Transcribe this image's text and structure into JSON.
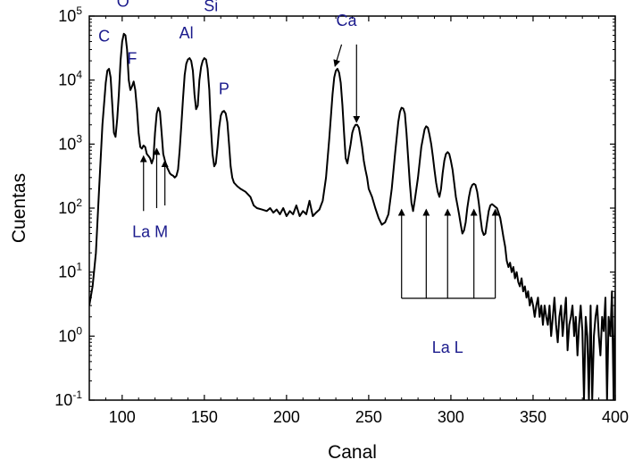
{
  "chart_data": {
    "type": "line",
    "xlabel": "Canal",
    "ylabel": "Cuentas",
    "xlim": [
      80,
      400
    ],
    "ylim": [
      0.1,
      100000
    ],
    "yscale": "log",
    "x_ticks": [
      100,
      150,
      200,
      250,
      300,
      350,
      400
    ],
    "x_tick_labels": [
      "100",
      "150",
      "200",
      "250",
      "300",
      "350",
      "400"
    ],
    "y_ticks": [
      {
        "value": 0.1,
        "base": "10",
        "exp": "-1"
      },
      {
        "value": 1,
        "base": "10",
        "exp": "0"
      },
      {
        "value": 10,
        "base": "10",
        "exp": "1"
      },
      {
        "value": 100,
        "base": "10",
        "exp": "2"
      },
      {
        "value": 1000,
        "base": "10",
        "exp": "3"
      },
      {
        "value": 10000,
        "base": "10",
        "exp": "4"
      },
      {
        "value": 100000,
        "base": "10",
        "exp": "5"
      }
    ],
    "grid": false,
    "line_color": "#000000",
    "annotation_color": "#1a1a8c",
    "series": [
      {
        "points": [
          [
            80,
            3
          ],
          [
            82,
            6
          ],
          [
            84,
            20
          ],
          [
            86,
            200
          ],
          [
            88,
            2000
          ],
          [
            90,
            9000
          ],
          [
            91,
            14000
          ],
          [
            92,
            15000
          ],
          [
            93,
            11000
          ],
          [
            94,
            4000
          ],
          [
            95,
            1500
          ],
          [
            96,
            1300
          ],
          [
            97,
            2500
          ],
          [
            98,
            6000
          ],
          [
            99,
            20000
          ],
          [
            100,
            40000
          ],
          [
            101,
            53000
          ],
          [
            102,
            50000
          ],
          [
            103,
            30000
          ],
          [
            104,
            10000
          ],
          [
            105,
            7000
          ],
          [
            106,
            8000
          ],
          [
            107,
            9500
          ],
          [
            108,
            7000
          ],
          [
            109,
            3500
          ],
          [
            110,
            1500
          ],
          [
            111,
            900
          ],
          [
            112,
            850
          ],
          [
            113,
            950
          ],
          [
            114,
            900
          ],
          [
            115,
            700
          ],
          [
            116,
            650
          ],
          [
            117,
            600
          ],
          [
            118,
            500
          ],
          [
            119,
            600
          ],
          [
            120,
            1500
          ],
          [
            121,
            3000
          ],
          [
            122,
            3700
          ],
          [
            123,
            3200
          ],
          [
            124,
            1500
          ],
          [
            125,
            700
          ],
          [
            126,
            550
          ],
          [
            127,
            450
          ],
          [
            128,
            400
          ],
          [
            129,
            350
          ],
          [
            130,
            330
          ],
          [
            131,
            320
          ],
          [
            132,
            300
          ],
          [
            133,
            320
          ],
          [
            134,
            400
          ],
          [
            135,
            800
          ],
          [
            136,
            2000
          ],
          [
            137,
            5000
          ],
          [
            138,
            12000
          ],
          [
            139,
            18000
          ],
          [
            140,
            21000
          ],
          [
            141,
            22000
          ],
          [
            142,
            20000
          ],
          [
            143,
            14000
          ],
          [
            144,
            6000
          ],
          [
            145,
            3500
          ],
          [
            146,
            4000
          ],
          [
            147,
            10000
          ],
          [
            148,
            16000
          ],
          [
            149,
            20000
          ],
          [
            150,
            22000
          ],
          [
            151,
            21000
          ],
          [
            152,
            15000
          ],
          [
            153,
            7000
          ],
          [
            154,
            1800
          ],
          [
            155,
            700
          ],
          [
            156,
            450
          ],
          [
            157,
            500
          ],
          [
            158,
            900
          ],
          [
            159,
            1800
          ],
          [
            160,
            2800
          ],
          [
            161,
            3200
          ],
          [
            162,
            3300
          ],
          [
            163,
            3000
          ],
          [
            164,
            2200
          ],
          [
            165,
            1000
          ],
          [
            166,
            450
          ],
          [
            167,
            300
          ],
          [
            168,
            250
          ],
          [
            170,
            220
          ],
          [
            172,
            200
          ],
          [
            175,
            180
          ],
          [
            178,
            150
          ],
          [
            180,
            110
          ],
          [
            182,
            100
          ],
          [
            185,
            95
          ],
          [
            188,
            90
          ],
          [
            190,
            100
          ],
          [
            192,
            85
          ],
          [
            194,
            95
          ],
          [
            196,
            80
          ],
          [
            198,
            100
          ],
          [
            200,
            75
          ],
          [
            202,
            90
          ],
          [
            204,
            80
          ],
          [
            206,
            110
          ],
          [
            208,
            75
          ],
          [
            210,
            90
          ],
          [
            212,
            80
          ],
          [
            214,
            130
          ],
          [
            216,
            75
          ],
          [
            218,
            85
          ],
          [
            220,
            95
          ],
          [
            222,
            130
          ],
          [
            224,
            300
          ],
          [
            226,
            1200
          ],
          [
            228,
            6000
          ],
          [
            229,
            11000
          ],
          [
            230,
            14000
          ],
          [
            231,
            15000
          ],
          [
            232,
            13000
          ],
          [
            233,
            9000
          ],
          [
            234,
            4000
          ],
          [
            235,
            1500
          ],
          [
            236,
            600
          ],
          [
            237,
            500
          ],
          [
            238,
            700
          ],
          [
            239,
            1000
          ],
          [
            240,
            1500
          ],
          [
            241,
            1800
          ],
          [
            242,
            2000
          ],
          [
            243,
            2000
          ],
          [
            244,
            1800
          ],
          [
            245,
            1300
          ],
          [
            246,
            900
          ],
          [
            247,
            550
          ],
          [
            248,
            400
          ],
          [
            249,
            300
          ],
          [
            250,
            200
          ],
          [
            252,
            150
          ],
          [
            254,
            100
          ],
          [
            256,
            70
          ],
          [
            258,
            55
          ],
          [
            260,
            60
          ],
          [
            262,
            80
          ],
          [
            264,
            200
          ],
          [
            266,
            700
          ],
          [
            268,
            2200
          ],
          [
            269,
            3200
          ],
          [
            270,
            3700
          ],
          [
            271,
            3600
          ],
          [
            272,
            3000
          ],
          [
            273,
            1500
          ],
          [
            274,
            600
          ],
          [
            275,
            250
          ],
          [
            276,
            120
          ],
          [
            277,
            90
          ],
          [
            278,
            130
          ],
          [
            280,
            300
          ],
          [
            282,
            900
          ],
          [
            284,
            1700
          ],
          [
            285,
            1900
          ],
          [
            286,
            1800
          ],
          [
            287,
            1400
          ],
          [
            288,
            1000
          ],
          [
            289,
            650
          ],
          [
            290,
            400
          ],
          [
            291,
            250
          ],
          [
            292,
            180
          ],
          [
            293,
            150
          ],
          [
            294,
            200
          ],
          [
            295,
            350
          ],
          [
            296,
            550
          ],
          [
            297,
            700
          ],
          [
            298,
            750
          ],
          [
            299,
            700
          ],
          [
            300,
            550
          ],
          [
            301,
            400
          ],
          [
            302,
            250
          ],
          [
            303,
            150
          ],
          [
            304,
            110
          ],
          [
            305,
            80
          ],
          [
            306,
            55
          ],
          [
            307,
            40
          ],
          [
            308,
            45
          ],
          [
            309,
            60
          ],
          [
            310,
            100
          ],
          [
            311,
            150
          ],
          [
            312,
            200
          ],
          [
            313,
            230
          ],
          [
            314,
            240
          ],
          [
            315,
            230
          ],
          [
            316,
            180
          ],
          [
            317,
            120
          ],
          [
            318,
            70
          ],
          [
            319,
            45
          ],
          [
            320,
            38
          ],
          [
            321,
            40
          ],
          [
            322,
            60
          ],
          [
            323,
            90
          ],
          [
            324,
            110
          ],
          [
            325,
            115
          ],
          [
            326,
            110
          ],
          [
            327,
            105
          ],
          [
            328,
            100
          ],
          [
            329,
            85
          ],
          [
            330,
            70
          ],
          [
            331,
            50
          ],
          [
            332,
            35
          ],
          [
            333,
            25
          ],
          [
            334,
            15
          ],
          [
            335,
            12
          ],
          [
            336,
            14
          ],
          [
            337,
            10
          ],
          [
            338,
            12
          ],
          [
            339,
            8
          ],
          [
            340,
            10
          ],
          [
            341,
            7
          ],
          [
            342,
            6
          ],
          [
            343,
            8
          ],
          [
            344,
            5
          ],
          [
            345,
            6
          ],
          [
            346,
            4
          ],
          [
            347,
            5
          ],
          [
            348,
            3
          ],
          [
            349,
            4
          ],
          [
            350,
            3
          ],
          [
            351,
            2
          ],
          [
            352,
            3
          ],
          [
            353,
            4
          ],
          [
            354,
            2
          ],
          [
            355,
            3
          ],
          [
            356,
            1.5
          ],
          [
            357,
            3
          ],
          [
            358,
            2
          ],
          [
            359,
            1.5
          ],
          [
            360,
            3
          ],
          [
            361,
            1
          ],
          [
            362,
            2
          ],
          [
            363,
            4
          ],
          [
            364,
            1.5
          ],
          [
            365,
            0.8
          ],
          [
            366,
            2
          ],
          [
            367,
            3
          ],
          [
            368,
            1
          ],
          [
            369,
            2
          ],
          [
            370,
            4
          ],
          [
            371,
            0.6
          ],
          [
            372,
            1.5
          ],
          [
            373,
            2
          ],
          [
            374,
            3
          ],
          [
            375,
            1
          ],
          [
            376,
            2
          ],
          [
            377,
            0.5
          ],
          [
            378,
            1.5
          ],
          [
            379,
            3
          ],
          [
            380,
            1.2
          ],
          [
            381,
            0.1
          ],
          [
            382,
            2
          ],
          [
            383,
            1
          ],
          [
            384,
            0.1
          ],
          [
            385,
            3
          ],
          [
            386,
            0.1
          ],
          [
            387,
            1
          ],
          [
            388,
            2
          ],
          [
            389,
            3
          ],
          [
            390,
            1
          ],
          [
            391,
            0.5
          ],
          [
            392,
            2
          ],
          [
            393,
            1.2
          ],
          [
            394,
            4
          ],
          [
            395,
            0.1
          ],
          [
            396,
            2
          ],
          [
            397,
            1
          ],
          [
            398,
            5
          ],
          [
            399,
            0.1
          ],
          [
            400,
            5
          ]
        ]
      }
    ],
    "annotations": {
      "labels": [
        {
          "id": "C",
          "text": "C",
          "x": 89,
          "y": 40000
        },
        {
          "id": "O",
          "text": "O",
          "x": 100.5,
          "y": 140000
        },
        {
          "id": "F",
          "text": "F",
          "x": 106,
          "y": 18000
        },
        {
          "id": "Al",
          "text": "Al",
          "x": 139,
          "y": 45000
        },
        {
          "id": "Si",
          "text": "Si",
          "x": 154,
          "y": 120000
        },
        {
          "id": "P",
          "text": "P",
          "x": 162,
          "y": 6000
        },
        {
          "id": "Ca",
          "text": "Ca",
          "x": 236.5,
          "y": 70000
        },
        {
          "id": "LaM",
          "text": "La M",
          "x": 117,
          "y": 35
        },
        {
          "id": "LaL",
          "text": "La L",
          "x": 298,
          "y": 0.55
        }
      ],
      "arrows": [
        {
          "id": "ca1",
          "x1": 233.5,
          "y1": 36000,
          "x2": 229.5,
          "y2": 16500
        },
        {
          "id": "ca2",
          "x1": 242.6,
          "y1": 36000,
          "x2": 242.6,
          "y2": 2200
        },
        {
          "id": "lam1",
          "x1": 113,
          "y1": 90,
          "x2": 113,
          "y2": 650
        },
        {
          "id": "lam2",
          "x1": 121,
          "y1": 100,
          "x2": 121,
          "y2": 850
        },
        {
          "id": "lam3",
          "x1": 126,
          "y1": 110,
          "x2": 126,
          "y2": 550
        },
        {
          "id": "lal1",
          "x1": 270,
          "y1": 3.9,
          "x2": 270,
          "y2": 95
        },
        {
          "id": "lal2",
          "x1": 285,
          "y1": 3.9,
          "x2": 285,
          "y2": 95
        },
        {
          "id": "lal3",
          "x1": 298,
          "y1": 3.9,
          "x2": 298,
          "y2": 95
        },
        {
          "id": "lal4",
          "x1": 314,
          "y1": 3.9,
          "x2": 314,
          "y2": 95
        },
        {
          "id": "lal5",
          "x1": 327,
          "y1": 3.9,
          "x2": 327,
          "y2": 95
        }
      ],
      "lines": [
        {
          "id": "lal-bar",
          "x1": 270,
          "y1": 3.9,
          "x2": 327,
          "y2": 3.9
        }
      ]
    }
  }
}
